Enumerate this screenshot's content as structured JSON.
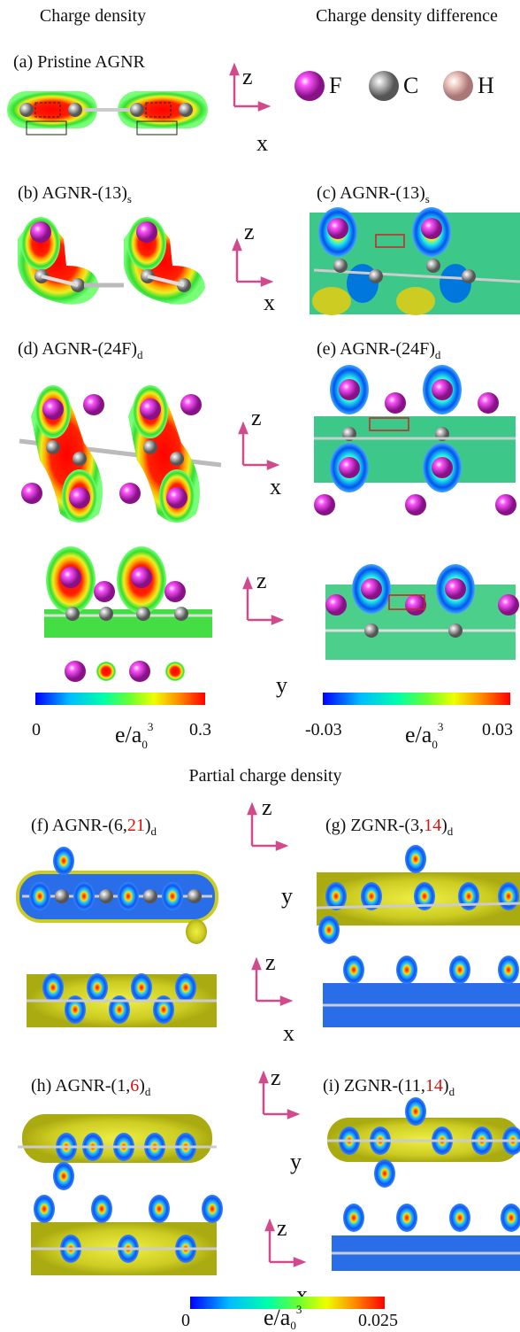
{
  "headers": {
    "left": "Charge density",
    "right": "Charge density difference",
    "partial": "Partial charge density"
  },
  "legend": [
    {
      "label": "F"
    },
    {
      "label": "C"
    },
    {
      "label": "H"
    }
  ],
  "panels": [
    {
      "label": "(a) Pristine AGNR"
    },
    {
      "label": "(b) AGNR-(13)",
      "sub": "s"
    },
    {
      "label": "(c) AGNR-(13)",
      "sub": "s"
    },
    {
      "label": "(d) AGNR-(24F)",
      "sub": "d"
    },
    {
      "label": "(e) AGNR-(24F)",
      "sub": "d"
    },
    {
      "label": "(f) AGNR-(6,",
      "highlight": "21",
      "close": ")",
      "sub": "d"
    },
    {
      "label": "(g) ZGNR-(3,",
      "highlight": "14",
      "close": ")",
      "sub": "d"
    },
    {
      "label": "(h) AGNR-(1,",
      "highlight": "6",
      "close": ")",
      "sub": "d"
    },
    {
      "label": "(i) ZGNR-(11,",
      "highlight": "14",
      "close": ")",
      "sub": "d"
    }
  ],
  "axes": [
    [
      "z",
      "x"
    ],
    [
      "z",
      "x"
    ],
    [
      "z",
      "x"
    ],
    [
      "z",
      "y"
    ],
    [
      "z",
      "y"
    ],
    [
      "z",
      "x"
    ],
    [
      "z",
      "y"
    ],
    [
      "z",
      "x"
    ]
  ],
  "colorbars": [
    {
      "min": 0,
      "max": 0.3,
      "unit": {
        "base": "e/a",
        "sub": "0",
        "sup": "3"
      }
    },
    {
      "min": -0.03,
      "max": 0.03,
      "unit": {
        "base": "e/a",
        "sub": "0",
        "sup": "3"
      }
    },
    {
      "min": 0,
      "max": 0.025,
      "unit": {
        "base": "e/a",
        "sub": "0",
        "sup": "3"
      }
    }
  ]
}
